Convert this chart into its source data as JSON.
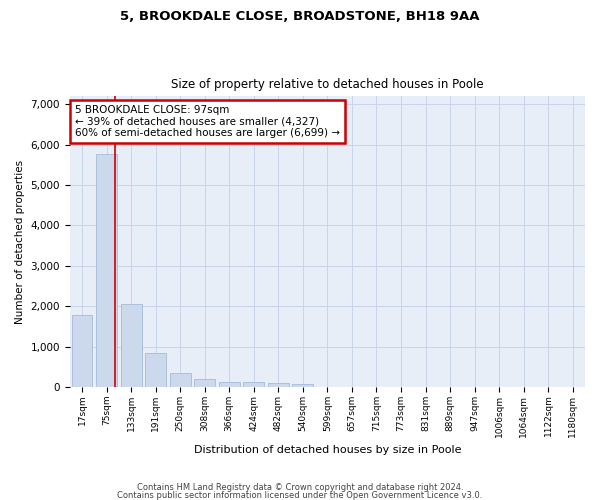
{
  "title1": "5, BROOKDALE CLOSE, BROADSTONE, BH18 9AA",
  "title2": "Size of property relative to detached houses in Poole",
  "xlabel": "Distribution of detached houses by size in Poole",
  "ylabel": "Number of detached properties",
  "bar_color": "#ccd9ed",
  "bar_edge_color": "#9ab3d5",
  "grid_color": "#c8d4e8",
  "bg_color": "#e8eef8",
  "vline_color": "#cc0000",
  "vline_x": 1.35,
  "annotation_box_color": "#cc0000",
  "annotation_lines": [
    "5 BROOKDALE CLOSE: 97sqm",
    "← 39% of detached houses are smaller (4,327)",
    "60% of semi-detached houses are larger (6,699) →"
  ],
  "categories": [
    "17sqm",
    "75sqm",
    "133sqm",
    "191sqm",
    "250sqm",
    "308sqm",
    "366sqm",
    "424sqm",
    "482sqm",
    "540sqm",
    "599sqm",
    "657sqm",
    "715sqm",
    "773sqm",
    "831sqm",
    "889sqm",
    "947sqm",
    "1006sqm",
    "1064sqm",
    "1122sqm",
    "1180sqm"
  ],
  "values": [
    1780,
    5780,
    2060,
    830,
    340,
    190,
    120,
    110,
    100,
    70,
    0,
    0,
    0,
    0,
    0,
    0,
    0,
    0,
    0,
    0,
    0
  ],
  "ylim": [
    0,
    7200
  ],
  "yticks": [
    0,
    1000,
    2000,
    3000,
    4000,
    5000,
    6000,
    7000
  ],
  "footnote1": "Contains HM Land Registry data © Crown copyright and database right 2024.",
  "footnote2": "Contains public sector information licensed under the Open Government Licence v3.0.",
  "figsize": [
    6.0,
    5.0
  ],
  "dpi": 100
}
